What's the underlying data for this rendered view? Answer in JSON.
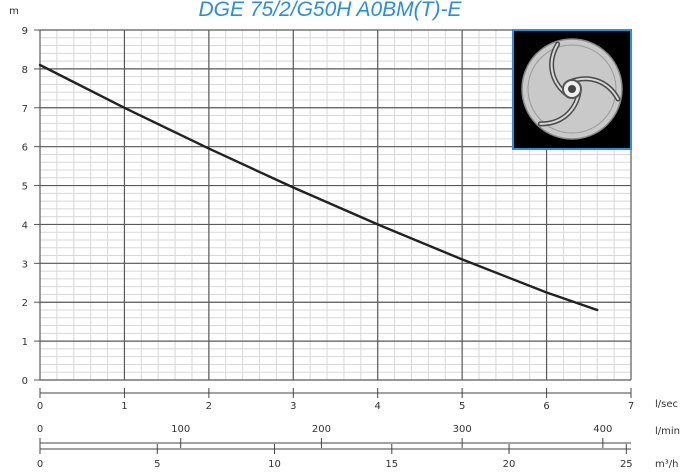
{
  "chart_data": {
    "type": "line",
    "title": "DGE 75/2/G50H A0BM(T)-E",
    "ylabel": "m",
    "ylim": [
      0,
      9
    ],
    "yticks": [
      "0",
      "1",
      "2",
      "3",
      "4",
      "5",
      "6",
      "7",
      "8",
      "9"
    ],
    "grid": true,
    "x_axes": [
      {
        "unit": "l/sec",
        "range": [
          0,
          7
        ],
        "ticks": [
          "0",
          "1",
          "2",
          "3",
          "4",
          "5",
          "6",
          "7"
        ]
      },
      {
        "unit": "l/min",
        "range": [
          0,
          420
        ],
        "ticks": [
          "0",
          "100",
          "200",
          "300",
          "400"
        ]
      },
      {
        "unit": "m³/h",
        "range": [
          0,
          25.2
        ],
        "ticks": [
          "0",
          "5",
          "10",
          "15",
          "20",
          "25"
        ]
      }
    ],
    "series": [
      {
        "x": [
          0,
          1,
          2,
          3,
          4,
          5,
          6,
          6.6
        ],
        "y": [
          8.1,
          7.0,
          5.95,
          4.95,
          4.0,
          3.1,
          2.25,
          1.8
        ]
      }
    ],
    "colors": {
      "title": "#2b8fd6",
      "curve": "#222222",
      "grid_minor": "#d8d8d8",
      "grid_major": "#5a5a5a",
      "inset_border": "#2b8fd6",
      "inset_bg": "#000000"
    }
  },
  "inset": {
    "icon": "impeller-icon"
  }
}
